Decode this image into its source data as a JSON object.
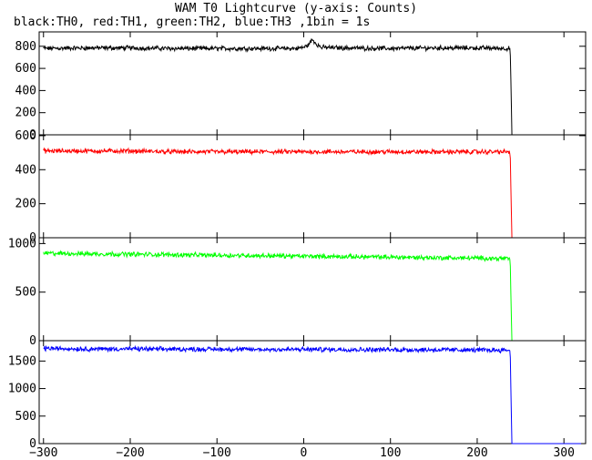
{
  "header": {
    "title": "WAM T0 Lightcurve (y-axis: Counts)",
    "subtitle": "black:TH0, red:TH1, green:TH2, blue:TH3 ,1bin = 1s"
  },
  "chart_data": {
    "type": "line",
    "title": "WAM T0 Lightcurve (y-axis: Counts)",
    "subtitle": "black:TH0, red:TH1, green:TH2, blue:TH3 ,1bin = 1s",
    "xlim": [
      -305,
      325
    ],
    "x_ticks": [
      -300,
      -200,
      -100,
      0,
      100,
      200,
      300
    ],
    "grid": false,
    "legend": "none",
    "panels": [
      {
        "name": "TH0",
        "color": "#000000",
        "ylim": [
          0,
          930
        ],
        "y_ticks": [
          0,
          200,
          400,
          600,
          800
        ],
        "points": [
          [
            -300,
            780
          ],
          [
            -250,
            785
          ],
          [
            -200,
            785
          ],
          [
            -150,
            780
          ],
          [
            -100,
            780
          ],
          [
            -50,
            780
          ],
          [
            -10,
            780
          ],
          [
            0,
            790
          ],
          [
            5,
            810
          ],
          [
            10,
            860
          ],
          [
            15,
            820
          ],
          [
            20,
            790
          ],
          [
            50,
            785
          ],
          [
            100,
            780
          ],
          [
            150,
            785
          ],
          [
            200,
            785
          ],
          [
            238,
            780
          ],
          [
            239,
            440
          ],
          [
            240,
            0
          ],
          [
            320,
            0
          ]
        ]
      },
      {
        "name": "TH1",
        "color": "#ff0000",
        "ylim": [
          0,
          605
        ],
        "y_ticks": [
          0,
          200,
          400,
          600
        ],
        "points": [
          [
            -300,
            510
          ],
          [
            -250,
            510
          ],
          [
            -200,
            510
          ],
          [
            -150,
            505
          ],
          [
            -100,
            505
          ],
          [
            -50,
            505
          ],
          [
            0,
            505
          ],
          [
            50,
            505
          ],
          [
            100,
            505
          ],
          [
            150,
            505
          ],
          [
            200,
            505
          ],
          [
            238,
            505
          ],
          [
            239,
            250
          ],
          [
            240,
            0
          ],
          [
            320,
            0
          ]
        ]
      },
      {
        "name": "TH2",
        "color": "#00ff00",
        "ylim": [
          0,
          1060
        ],
        "y_ticks": [
          0,
          500,
          1000
        ],
        "points": [
          [
            -300,
            900
          ],
          [
            -250,
            895
          ],
          [
            -200,
            890
          ],
          [
            -150,
            885
          ],
          [
            -100,
            880
          ],
          [
            -50,
            875
          ],
          [
            0,
            870
          ],
          [
            50,
            865
          ],
          [
            100,
            860
          ],
          [
            150,
            855
          ],
          [
            200,
            850
          ],
          [
            238,
            845
          ],
          [
            239,
            400
          ],
          [
            240,
            0
          ],
          [
            320,
            0
          ]
        ]
      },
      {
        "name": "TH3",
        "color": "#0000ff",
        "ylim": [
          0,
          1870
        ],
        "y_ticks": [
          0,
          500,
          1000,
          1500
        ],
        "points": [
          [
            -300,
            1730
          ],
          [
            -250,
            1720
          ],
          [
            -200,
            1720
          ],
          [
            -150,
            1715
          ],
          [
            -100,
            1715
          ],
          [
            -50,
            1710
          ],
          [
            0,
            1710
          ],
          [
            50,
            1710
          ],
          [
            100,
            1705
          ],
          [
            150,
            1705
          ],
          [
            200,
            1700
          ],
          [
            238,
            1700
          ],
          [
            239,
            850
          ],
          [
            240,
            0
          ],
          [
            320,
            0
          ]
        ]
      }
    ]
  }
}
